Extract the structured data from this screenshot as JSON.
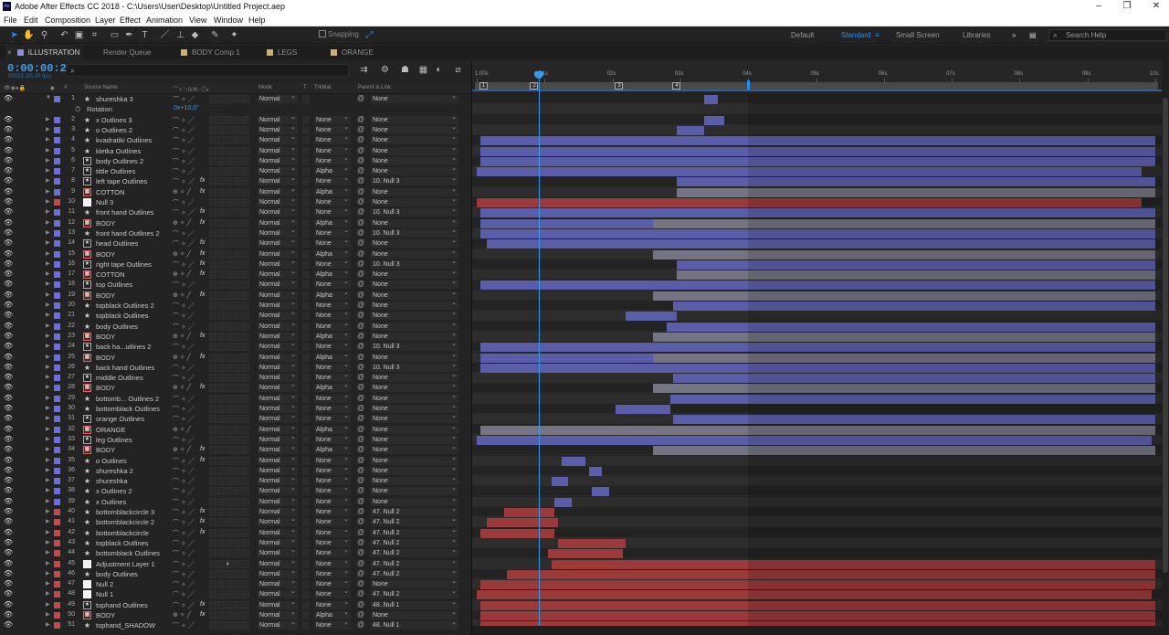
{
  "app": {
    "title": "Adobe After Effects CC 2018 - C:\\Users\\User\\Desktop\\Untitled Project.aep"
  },
  "menu": [
    "File",
    "Edit",
    "Composition",
    "Layer",
    "Effect",
    "Animation",
    "View",
    "Window",
    "Help"
  ],
  "toolbar": {
    "snapping_label": "Snapping",
    "workspaces": [
      "Default",
      "Standard",
      "Small Screen",
      "Libraries"
    ],
    "active_workspace": "Standard",
    "search_placeholder": "Search Help"
  },
  "tabs": [
    {
      "label": "ILLUSTRATION",
      "active": true,
      "color": "#8a8fd8"
    },
    {
      "label": "Render Queue",
      "active": false,
      "color": null
    },
    {
      "label": "BODY Comp 1",
      "active": false,
      "color": "#c7b07a"
    },
    {
      "label": "LEGS",
      "active": false,
      "color": "#c7b07a"
    },
    {
      "label": "ORANGE",
      "active": false,
      "color": "#c7b07a"
    }
  ],
  "timeline": {
    "timecode": "0:00:00:23",
    "fps_info": "00023 (25.00 fps)",
    "search_placeholder": "",
    "columns": {
      "num": "#",
      "source": "Source Name",
      "mode": "Mode",
      "t": "T",
      "trkmat": "TrkMat",
      "parent": "Parent & Link"
    },
    "ruler_ticks": [
      "1:00s",
      "01s",
      "02s",
      "03s",
      "04s",
      "05s",
      "06s",
      "07s",
      "08s",
      "09s",
      "10s"
    ],
    "markers": [
      "1",
      "2",
      "3",
      "4"
    ],
    "current_time_s": 0.92,
    "duration_s": 10,
    "work_area_end_s": 4
  },
  "colors": {
    "blue_bar": "#5a5ea8",
    "gray_bar": "#747482",
    "red_bar": "#9a3a3a",
    "accent": "#2d8ceb"
  },
  "layers": [
    {
      "num": "1",
      "name": "shureshka 3",
      "icon": "star",
      "label": "#6a6ee0",
      "mode": "Normal",
      "trk": "",
      "parent": "None",
      "fx": false,
      "expanded": true,
      "bar": {
        "start": 3.35,
        "end": 3.55,
        "c": "blue"
      }
    },
    {
      "sub": true,
      "name": "Rotation",
      "value": "0x+10,0°"
    },
    {
      "num": "2",
      "name": "x Outlines 3",
      "icon": "star",
      "label": "#6a6ee0",
      "mode": "Normal",
      "trk": "None",
      "parent": "None",
      "bar": {
        "start": 3.35,
        "end": 3.65,
        "c": "blue"
      }
    },
    {
      "num": "3",
      "name": "o Outlines 2",
      "icon": "star",
      "label": "#6a6ee0",
      "mode": "Normal",
      "trk": "None",
      "parent": "None",
      "bar": {
        "start": 2.95,
        "end": 3.35,
        "c": "blue"
      }
    },
    {
      "num": "4",
      "name": "kvadratiki Outlines",
      "icon": "star",
      "label": "#6a6ee0",
      "mode": "Normal",
      "trk": "None",
      "parent": "None",
      "bar": {
        "start": 0.05,
        "end": 10,
        "c": "blue"
      }
    },
    {
      "num": "5",
      "name": "kletka Outlines",
      "icon": "star",
      "label": "#6a6ee0",
      "mode": "Normal",
      "trk": "None",
      "parent": "None",
      "bar": {
        "start": 0.05,
        "end": 10,
        "c": "blue"
      }
    },
    {
      "num": "6",
      "name": "body Outlines 2",
      "icon": "starbox",
      "label": "#6a6ee0",
      "mode": "Normal",
      "trk": "None",
      "parent": "None",
      "bar": {
        "start": 0.05,
        "end": 2.8,
        "c": "blue"
      },
      "bar2": {
        "start": 2.8,
        "end": 10,
        "c": "blue"
      }
    },
    {
      "num": "7",
      "name": "tittle Outlines",
      "icon": "starbox",
      "label": "#6a6ee0",
      "mode": "Normal",
      "trk": "Alpha",
      "parent": "None",
      "bar": {
        "start": 0,
        "end": 9.8,
        "c": "blue"
      }
    },
    {
      "num": "8",
      "name": "left tape Outlines",
      "icon": "starbox",
      "label": "#6a6ee0",
      "mode": "Normal",
      "trk": "None",
      "parent": "10. Null 3",
      "fx": true,
      "bar": {
        "start": 2.95,
        "end": 10,
        "c": "blue"
      }
    },
    {
      "num": "9",
      "name": "COTTON",
      "icon": "comp",
      "label": "#6a6ee0",
      "mode": "Normal",
      "trk": "Alpha",
      "parent": "None",
      "fx": true,
      "bar": {
        "start": 2.95,
        "end": 10,
        "c": "gray"
      }
    },
    {
      "num": "10",
      "name": "Null 3",
      "icon": "white",
      "label": "#c24a4a",
      "mode": "Normal",
      "trk": "None",
      "parent": "None",
      "bar": {
        "start": 0,
        "end": 9.8,
        "c": "red"
      }
    },
    {
      "num": "11",
      "name": "front hand Outlines",
      "icon": "star",
      "label": "#6a6ee0",
      "mode": "Normal",
      "trk": "None",
      "parent": "10. Null 3",
      "fx": true,
      "bar": {
        "start": 0.05,
        "end": 10,
        "c": "blue"
      }
    },
    {
      "num": "12",
      "name": "BODY",
      "icon": "comp",
      "label": "#6a6ee0",
      "mode": "Normal",
      "trk": "Alpha",
      "parent": "None",
      "fx": true,
      "bar": {
        "start": 0.05,
        "end": 2.6,
        "c": "blue"
      },
      "bar2": {
        "start": 2.6,
        "end": 10,
        "c": "gray"
      }
    },
    {
      "num": "13",
      "name": "front hand Outlines 2",
      "icon": "star",
      "label": "#6a6ee0",
      "mode": "Normal",
      "trk": "None",
      "parent": "10. Null 3",
      "bar": {
        "start": 0.05,
        "end": 10,
        "c": "blue"
      }
    },
    {
      "num": "14",
      "name": "head Outlines",
      "icon": "starbox",
      "label": "#6a6ee0",
      "mode": "Normal",
      "trk": "None",
      "parent": "None",
      "fx": true,
      "bar": {
        "start": 0.15,
        "end": 10,
        "c": "blue"
      }
    },
    {
      "num": "15",
      "name": "BODY",
      "icon": "comp",
      "label": "#6a6ee0",
      "mode": "Normal",
      "trk": "Alpha",
      "parent": "None",
      "fx": true,
      "bar": {
        "start": 2.6,
        "end": 10,
        "c": "gray"
      }
    },
    {
      "num": "16",
      "name": "right tape Outlines",
      "icon": "starbox",
      "label": "#6a6ee0",
      "mode": "Normal",
      "trk": "None",
      "parent": "10. Null 3",
      "fx": true,
      "bar": {
        "start": 2.95,
        "end": 10,
        "c": "blue"
      }
    },
    {
      "num": "17",
      "name": "COTTON",
      "icon": "comp",
      "label": "#6a6ee0",
      "mode": "Normal",
      "trk": "Alpha",
      "parent": "None",
      "fx": true,
      "bar": {
        "start": 2.95,
        "end": 10,
        "c": "gray"
      }
    },
    {
      "num": "18",
      "name": "top Outlines",
      "icon": "starbox",
      "label": "#6a6ee0",
      "mode": "Normal",
      "trk": "None",
      "parent": "None",
      "bar": {
        "start": 0.05,
        "end": 10,
        "c": "blue"
      }
    },
    {
      "num": "19",
      "name": "BODY",
      "icon": "comp",
      "label": "#6a6ee0",
      "mode": "Normal",
      "trk": "Alpha",
      "parent": "None",
      "fx": true,
      "bar": {
        "start": 2.6,
        "end": 10,
        "c": "gray"
      }
    },
    {
      "num": "20",
      "name": "topblack Outlines 2",
      "icon": "star",
      "label": "#6a6ee0",
      "mode": "Normal",
      "trk": "None",
      "parent": "None",
      "bar": {
        "start": 2.9,
        "end": 10,
        "c": "blue"
      }
    },
    {
      "num": "21",
      "name": "topblack Outlines",
      "icon": "star",
      "label": "#6a6ee0",
      "mode": "Normal",
      "trk": "None",
      "parent": "None",
      "bar": {
        "start": 2.2,
        "end": 2.95,
        "c": "blue"
      }
    },
    {
      "num": "22",
      "name": "body Outlines",
      "icon": "star",
      "label": "#6a6ee0",
      "mode": "Normal",
      "trk": "None",
      "parent": "None",
      "bar": {
        "start": 2.8,
        "end": 10,
        "c": "blue"
      }
    },
    {
      "num": "23",
      "name": "BODY",
      "icon": "comp",
      "label": "#6a6ee0",
      "mode": "Normal",
      "trk": "Alpha",
      "parent": "None",
      "fx": true,
      "bar": {
        "start": 2.6,
        "end": 10,
        "c": "gray"
      }
    },
    {
      "num": "24",
      "name": "back ha...utlines 2",
      "icon": "starbox",
      "label": "#6a6ee0",
      "mode": "Normal",
      "trk": "None",
      "parent": "10. Null 3",
      "bar": {
        "start": 0.05,
        "end": 10,
        "c": "blue"
      }
    },
    {
      "num": "25",
      "name": "BODY",
      "icon": "comp",
      "label": "#6a6ee0",
      "mode": "Normal",
      "trk": "Alpha",
      "parent": "None",
      "fx": true,
      "bar": {
        "start": 0.05,
        "end": 2.6,
        "c": "blue"
      },
      "bar2": {
        "start": 2.6,
        "end": 10,
        "c": "gray"
      }
    },
    {
      "num": "26",
      "name": "back hand Outlines",
      "icon": "star",
      "label": "#6a6ee0",
      "mode": "Normal",
      "trk": "None",
      "parent": "10. Null 3",
      "bar": {
        "start": 0.05,
        "end": 10,
        "c": "blue"
      }
    },
    {
      "num": "27",
      "name": "middle Outlines",
      "icon": "starbox",
      "label": "#6a6ee0",
      "mode": "Normal",
      "trk": "None",
      "parent": "None",
      "bar": {
        "start": 2.9,
        "end": 10,
        "c": "blue"
      }
    },
    {
      "num": "28",
      "name": "BODY",
      "icon": "comp",
      "label": "#6a6ee0",
      "mode": "Normal",
      "trk": "Alpha",
      "parent": "None",
      "fx": true,
      "bar": {
        "start": 2.6,
        "end": 10,
        "c": "gray"
      }
    },
    {
      "num": "29",
      "name": "bottomb... Outlines 2",
      "icon": "star",
      "label": "#6a6ee0",
      "mode": "Normal",
      "trk": "None",
      "parent": "None",
      "bar": {
        "start": 2.85,
        "end": 10,
        "c": "blue"
      }
    },
    {
      "num": "30",
      "name": "bottomblack Outlines",
      "icon": "star",
      "label": "#6a6ee0",
      "mode": "Normal",
      "trk": "None",
      "parent": "None",
      "bar": {
        "start": 2.05,
        "end": 2.85,
        "c": "blue"
      }
    },
    {
      "num": "31",
      "name": "orange Outlines",
      "icon": "starbox",
      "label": "#6a6ee0",
      "mode": "Normal",
      "trk": "None",
      "parent": "None",
      "bar": {
        "start": 2.9,
        "end": 10,
        "c": "blue"
      }
    },
    {
      "num": "32",
      "name": "ORANGE",
      "icon": "comp",
      "label": "#6a6ee0",
      "mode": "Normal",
      "trk": "Alpha",
      "parent": "None",
      "bar": {
        "start": 0.05,
        "end": 10,
        "c": "gray"
      }
    },
    {
      "num": "33",
      "name": "leg Outlines",
      "icon": "starbox",
      "label": "#6a6ee0",
      "mode": "Normal",
      "trk": "None",
      "parent": "None",
      "bar": {
        "start": 0,
        "end": 9.95,
        "c": "blue"
      }
    },
    {
      "num": "34",
      "name": "BODY",
      "icon": "comp",
      "label": "#6a6ee0",
      "mode": "Normal",
      "trk": "Alpha",
      "parent": "None",
      "fx": true,
      "bar": {
        "start": 2.6,
        "end": 10,
        "c": "gray"
      }
    },
    {
      "num": "35",
      "name": "o Outlines",
      "icon": "star",
      "label": "#6a6ee0",
      "mode": "Normal",
      "trk": "None",
      "parent": "None",
      "fx": true,
      "bar": {
        "start": 1.25,
        "end": 1.6,
        "c": "blue"
      }
    },
    {
      "num": "36",
      "name": "shureshka 2",
      "icon": "star",
      "label": "#6a6ee0",
      "mode": "Normal",
      "trk": "None",
      "parent": "None",
      "bar": {
        "start": 1.65,
        "end": 1.85,
        "c": "blue"
      }
    },
    {
      "num": "37",
      "name": "shureshka",
      "icon": "star",
      "label": "#6a6ee0",
      "mode": "Normal",
      "trk": "None",
      "parent": "None",
      "bar": {
        "start": 1.1,
        "end": 1.35,
        "c": "blue"
      }
    },
    {
      "num": "38",
      "name": "x Outlines 2",
      "icon": "star",
      "label": "#6a6ee0",
      "mode": "Normal",
      "trk": "None",
      "parent": "None",
      "bar": {
        "start": 1.7,
        "end": 1.95,
        "c": "blue"
      }
    },
    {
      "num": "39",
      "name": "x Outlines",
      "icon": "star",
      "label": "#6a6ee0",
      "mode": "Normal",
      "trk": "None",
      "parent": "None",
      "bar": {
        "start": 1.15,
        "end": 1.4,
        "c": "blue"
      }
    },
    {
      "num": "40",
      "name": "bottomblackcircle 3",
      "icon": "star",
      "label": "#c24a4a",
      "mode": "Normal",
      "trk": "None",
      "parent": "47. Null 2",
      "fx": true,
      "bar": {
        "start": 0.4,
        "end": 1.15,
        "c": "red"
      }
    },
    {
      "num": "41",
      "name": "bottomblackcircle 2",
      "icon": "star",
      "label": "#c24a4a",
      "mode": "Normal",
      "trk": "None",
      "parent": "47. Null 2",
      "fx": true,
      "bar": {
        "start": 0.15,
        "end": 1.2,
        "c": "red"
      }
    },
    {
      "num": "42",
      "name": "bottomblackcircle",
      "icon": "star",
      "label": "#c24a4a",
      "mode": "Normal",
      "trk": "None",
      "parent": "47. Null 2",
      "fx": true,
      "bar": {
        "start": 0.05,
        "end": 1.15,
        "c": "red"
      }
    },
    {
      "num": "43",
      "name": "topblack Outlines",
      "icon": "star",
      "label": "#c24a4a",
      "mode": "Normal",
      "trk": "None",
      "parent": "47. Null 2",
      "bar": {
        "start": 1.2,
        "end": 2.2,
        "c": "red"
      }
    },
    {
      "num": "44",
      "name": "bottomblack Outlines",
      "icon": "star",
      "label": "#c24a4a",
      "mode": "Normal",
      "trk": "None",
      "parent": "47. Null 2",
      "bar": {
        "start": 1.05,
        "end": 2.15,
        "c": "red"
      }
    },
    {
      "num": "45",
      "name": "Adjustment Layer 1",
      "icon": "white",
      "label": "#c24a4a",
      "mode": "Normal",
      "trk": "None",
      "parent": "47. Null 2",
      "adj": true,
      "bar": {
        "start": 1.1,
        "end": 10,
        "c": "red"
      }
    },
    {
      "num": "46",
      "name": "body Outlines",
      "icon": "star",
      "label": "#c24a4a",
      "mode": "Normal",
      "trk": "None",
      "parent": "47. Null 2",
      "bar": {
        "start": 0.45,
        "end": 10,
        "c": "red"
      }
    },
    {
      "num": "47",
      "name": "Null 2",
      "icon": "white",
      "label": "#c24a4a",
      "mode": "Normal",
      "trk": "None",
      "parent": "None",
      "bar": {
        "start": 0.05,
        "end": 10,
        "c": "red"
      }
    },
    {
      "num": "48",
      "name": "Null 1",
      "icon": "white",
      "label": "#c24a4a",
      "mode": "Normal",
      "trk": "None",
      "parent": "47. Null 2",
      "bar": {
        "start": 0,
        "end": 9.95,
        "c": "red"
      }
    },
    {
      "num": "49",
      "name": "tophand Outlines",
      "icon": "starbox",
      "label": "#c24a4a",
      "mode": "Normal",
      "trk": "None",
      "parent": "48. Null 1",
      "fx": true,
      "bar": {
        "start": 0.05,
        "end": 10,
        "c": "red"
      }
    },
    {
      "num": "50",
      "name": "BODY",
      "icon": "comp",
      "label": "#c24a4a",
      "mode": "Normal",
      "trk": "Alpha",
      "parent": "None",
      "fx": true,
      "bar": {
        "start": 0.05,
        "end": 10,
        "c": "red"
      }
    },
    {
      "num": "51",
      "name": "tophand_SHADOW",
      "icon": "star",
      "label": "#c24a4a",
      "mode": "Normal",
      "trk": "None",
      "parent": "48. Null 1",
      "bar": {
        "start": 0.05,
        "end": 10,
        "c": "red"
      }
    }
  ]
}
